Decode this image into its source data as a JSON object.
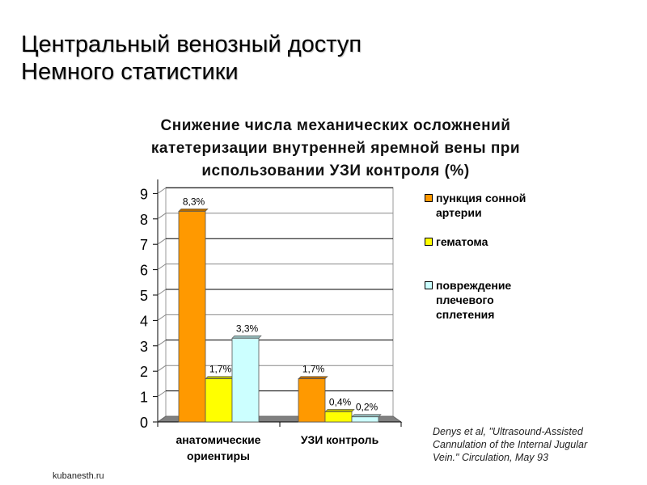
{
  "slide": {
    "title_line1": "Центральный венозный доступ",
    "title_line2": "Немного статистики",
    "footer": "kubanesth.ru",
    "citation": {
      "line1": "Denys et al, \"Ultrasound-Assisted",
      "line2": "Cannulation of the Internal Jugular",
      "line3": "Vein.\"  Circulation, May 93"
    }
  },
  "chart_title": {
    "line1": "Снижение числа механических  осложнений",
    "line2": "катетеризации внутренней яремной вены при",
    "line3": "использовании УЗИ контроля (%)"
  },
  "legend": {
    "items": [
      {
        "line1": "пункция сонной",
        "line2": "артерии",
        "line3": "",
        "color": "#FF9900"
      },
      {
        "line1": "гематома",
        "line2": "",
        "line3": "",
        "color": "#FFFF00"
      },
      {
        "line1": "повреждение",
        "line2": "плечевого",
        "line3": "сплетения",
        "color": "#CCFFFF"
      }
    ]
  },
  "axis": {
    "y_ticks": [
      "0",
      "1",
      "2",
      "3",
      "4",
      "5",
      "6",
      "7",
      "8",
      "9"
    ],
    "x_cat1_line1": "анатомические",
    "x_cat1_line2": "ориентиры",
    "x_cat2": "УЗИ контроль"
  },
  "labels": {
    "g1s1": "8,3%",
    "g1s2": "1,7%",
    "g1s3": "3,3%",
    "g2s1": "1,7%",
    "g2s2": "0,4%",
    "g2s3": "0,2%"
  },
  "chart_data": {
    "type": "bar",
    "title": "Снижение числа механических  осложнений катетеризации внутренней яремной вены при использовании УЗИ контроля (%)",
    "categories": [
      "анатомические ориентиры",
      "УЗИ контроль"
    ],
    "series": [
      {
        "name": "пункция сонной артерии",
        "values": [
          8.3,
          1.7
        ],
        "color": "#FF9900"
      },
      {
        "name": "гематома",
        "values": [
          1.7,
          0.4
        ],
        "color": "#FFFF00"
      },
      {
        "name": "повреждение плечевого сплетения",
        "values": [
          3.3,
          0.2
        ],
        "color": "#CCFFFF"
      }
    ],
    "data_labels": [
      [
        "8,3%",
        "1,7%"
      ],
      [
        "1,7%",
        "0,4%"
      ],
      [
        "3,3%",
        "0,2%"
      ]
    ],
    "xlabel": "",
    "ylabel": "",
    "ylim": [
      0,
      9
    ],
    "y_ticks": [
      0,
      1,
      2,
      3,
      4,
      5,
      6,
      7,
      8,
      9
    ],
    "grid": true,
    "legend_position": "right",
    "style": "3D clustered column"
  }
}
